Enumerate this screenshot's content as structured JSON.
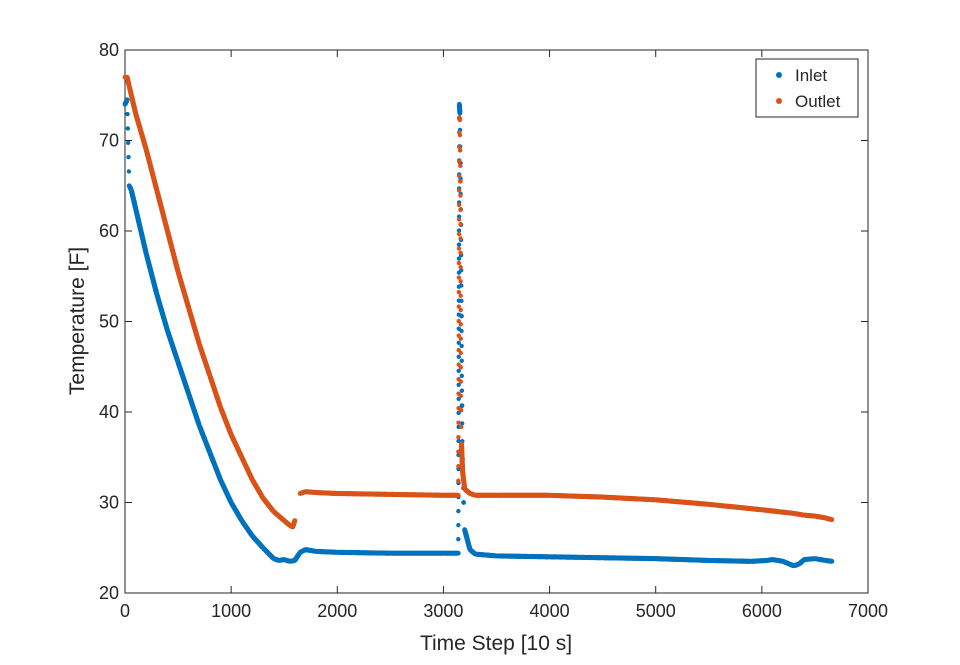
{
  "chart_data": {
    "type": "scatter",
    "title": "",
    "xlabel": "Time Step [10 s]",
    "ylabel": "Temperature [F]",
    "xlim": [
      0,
      7000
    ],
    "ylim": [
      20,
      80
    ],
    "xticks": [
      0,
      1000,
      2000,
      3000,
      4000,
      5000,
      6000,
      7000
    ],
    "yticks": [
      20,
      30,
      40,
      50,
      60,
      70,
      80
    ],
    "grid": false,
    "legend_position": "top-right",
    "series": [
      {
        "name": "Inlet",
        "color": "#0072BD",
        "x": [
          0,
          20,
          40,
          60,
          100,
          200,
          300,
          400,
          500,
          600,
          700,
          800,
          900,
          1000,
          1100,
          1200,
          1300,
          1400,
          1450,
          1500,
          1550,
          1600,
          1650,
          1700,
          1800,
          2000,
          2500,
          3000,
          3140,
          3150,
          3155,
          3160,
          3165,
          3170,
          3175,
          3180,
          3190,
          3200,
          3250,
          3300,
          3500,
          4000,
          4500,
          5000,
          5500,
          5900,
          6050,
          6100,
          6200,
          6300,
          6350,
          6400,
          6500,
          6600,
          6660
        ],
        "y": [
          74,
          74.5,
          65,
          64.5,
          62.5,
          57.5,
          53,
          49,
          45.5,
          42,
          38.5,
          35.5,
          32.5,
          30,
          28,
          26.3,
          25,
          23.8,
          23.6,
          23.7,
          23.5,
          23.6,
          24.5,
          24.8,
          24.6,
          24.5,
          24.4,
          24.4,
          24.4,
          74,
          73,
          67.5,
          60.7,
          50.6,
          40.7,
          34.8,
          30,
          27,
          24.8,
          24.3,
          24.1,
          24,
          23.9,
          23.8,
          23.6,
          23.5,
          23.6,
          23.7,
          23.5,
          23,
          23.2,
          23.7,
          23.8,
          23.6,
          23.5
        ]
      },
      {
        "name": "Outlet",
        "color": "#D95319",
        "x": [
          0,
          20,
          40,
          60,
          100,
          200,
          300,
          400,
          500,
          600,
          700,
          800,
          900,
          1000,
          1100,
          1200,
          1300,
          1400,
          1500,
          1550,
          1580,
          1600,
          1650,
          1700,
          1800,
          2000,
          2500,
          3000,
          3140,
          3150,
          3155,
          3160,
          3165,
          3170,
          3175,
          3180,
          3200,
          3250,
          3300,
          3500,
          4000,
          4500,
          5000,
          5500,
          6000,
          6300,
          6400,
          6500,
          6600,
          6660
        ],
        "y": [
          77,
          77,
          76,
          75,
          73,
          69,
          64.5,
          60,
          55.5,
          51.5,
          47.5,
          44,
          40.5,
          37.5,
          35,
          32.5,
          30.5,
          29,
          28,
          27.5,
          27.3,
          28,
          31,
          31.2,
          31.1,
          31,
          30.9,
          30.8,
          30.8,
          72.5,
          72.3,
          65.5,
          40.2,
          36.5,
          35,
          33.5,
          31.5,
          31,
          30.8,
          30.8,
          30.8,
          30.6,
          30.3,
          29.8,
          29.2,
          28.8,
          28.6,
          28.5,
          28.3,
          28.1
        ]
      }
    ]
  }
}
